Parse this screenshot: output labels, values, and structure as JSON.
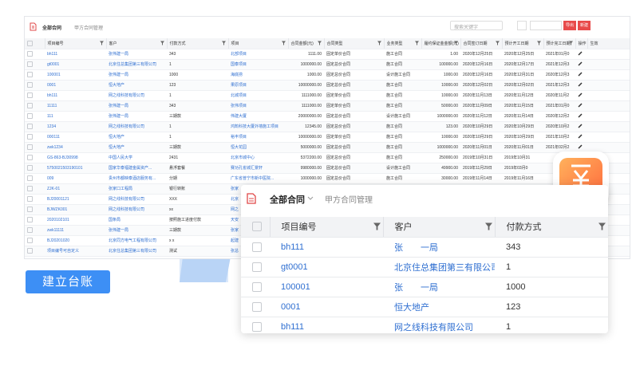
{
  "toolbar": {
    "title": "全部合同",
    "tab": "甲方合同管理",
    "search_placeholder": "搜索关键字",
    "export": "导出",
    "create": "新建"
  },
  "table": {
    "columns": [
      "项目编号",
      "客户",
      "付款方式",
      "项目",
      "合同金额(元)",
      "合同类型",
      "业务类型",
      "履约保证金金额(元)",
      "合同签订日期",
      "预计开工日期",
      "预计完工日期",
      "操作",
      "生效"
    ],
    "rows": [
      [
        "bh111",
        "张伟建一局",
        "343",
        "北部项目",
        "1111.00",
        "固定单价合同",
        "施工合同",
        "1.00",
        "2020年12月25日",
        "2020年12月25日",
        "2021年01月0"
      ],
      [
        "gt0001",
        "北京住总集团第三有限公司",
        "1",
        "国泰项目",
        "1000000.00",
        "固定总价合同",
        "施工合同",
        "100000.00",
        "2020年12月16日",
        "2020年12月17日",
        "2021年12月3"
      ],
      [
        "100001",
        "张伟建一局",
        "1000",
        "海底捞",
        "1000.00",
        "固定总价合同",
        "设计施工合同",
        "1000.00",
        "2020年12月16日",
        "2020年12月31日",
        "2020年12月3"
      ],
      [
        "0001",
        "恒大地产",
        "123",
        "果原项目",
        "10000000.00",
        "固定总价合同",
        "施工合同",
        "10000.00",
        "2020年12月02日",
        "2020年12月02日",
        "2021年12月3"
      ],
      [
        "bh111",
        "网之线科技有限公司",
        "1",
        "北城项目",
        "1111000.00",
        "固定单价合同",
        "施工合同",
        "10000.00",
        "2020年11月13日",
        "2020年11月12日",
        "2020年11月2"
      ],
      [
        "11111",
        "张伟建一局",
        "343",
        "张伟项目",
        "1111000.00",
        "固定单价合同",
        "施工合同",
        "50000.00",
        "2020年11月09日",
        "2020年11月15日",
        "2021年01月0"
      ],
      [
        "111",
        "张伟建一局",
        "三期款",
        "伟建大厦",
        "20000000.00",
        "固定总价合同",
        "设计施工合同",
        "1000000.00",
        "2020年11月12日",
        "2020年11月14日",
        "2020年12月2"
      ],
      [
        "1234",
        "网之线科技有限公司",
        "1",
        "鸿鹄科技大厦外墙施工项目",
        "12345.00",
        "固定总价合同",
        "施工合同",
        "123.00",
        "2020年10月29日",
        "2020年10月29日",
        "2020年10月2"
      ],
      [
        "000111",
        "恒大地产",
        "1",
        "裕丰项目",
        "10000000.00",
        "固定单价合同",
        "施工合同",
        "10000.00",
        "2020年10月29日",
        "2020年10月29日",
        "2021年10月2"
      ],
      [
        "zwk1234",
        "恒大地产",
        "三期款",
        "恒大花园",
        "5000000.00",
        "固定总价合同",
        "施工合同",
        "1000000.00",
        "2020年11月01日",
        "2020年11月01日",
        "2021年02月2"
      ],
      [
        "GS-863-BJ30998",
        "中国人民大学",
        "2431",
        "北京市城中心",
        "5372200.00",
        "固定总价合同",
        "施工合同",
        "250000.00",
        "2019年10月31日",
        "2019年10月31"
      ],
      [
        "5750021503190101",
        "国家华泰福建金属资产...",
        "悬浮套餐",
        "赛功孔雀城汇景轩",
        "9980000.00",
        "固定总价合同",
        "设计施工合同",
        "49900.00",
        "2019年11月29日",
        "2019年03月0"
      ],
      [
        "009",
        "贵州市都映泰酒店服务有...",
        "分期",
        "广东省普宁市新中医院...",
        "1000000.00",
        "固定总价合同",
        "施工合同",
        "30000.00",
        "2019年11月14日",
        "2019年11月16日"
      ],
      [
        "ZJK-01",
        "张家口工程局",
        "银行转账",
        "张家"
      ],
      [
        "BJ20001121",
        "网之线科技有限公司",
        "XXX",
        "北京"
      ],
      [
        "BJWZK001",
        "网之线科技有限公司",
        "xx",
        "网之"
      ],
      [
        "2020102101",
        "国条局",
        "按照施工进度付款",
        "天安"
      ],
      [
        "zwk11111",
        "张伟建一局",
        "三期款",
        "张家"
      ],
      [
        "BJ20201020",
        "北京同方电气工程有限公司",
        "x x",
        "起建"
      ],
      [
        "项目编号可自定义",
        "北京住总集团第三有限公司",
        "测试",
        "张总"
      ]
    ]
  },
  "overlay": {
    "title": "全部合同",
    "tab": "甲方合同管理",
    "columns": [
      "项目编号",
      "客户",
      "付款方式"
    ],
    "rows": [
      [
        "bh111",
        "张　　一局",
        "343"
      ],
      [
        "gt0001",
        "北京住总集团第三有限公司",
        "1"
      ],
      [
        "100001",
        "张　　一局",
        "1000"
      ],
      [
        "0001",
        "恒大地产",
        "123"
      ],
      [
        "bh111",
        "网之线科技有限公司",
        "1"
      ]
    ]
  },
  "label": "建立台账"
}
